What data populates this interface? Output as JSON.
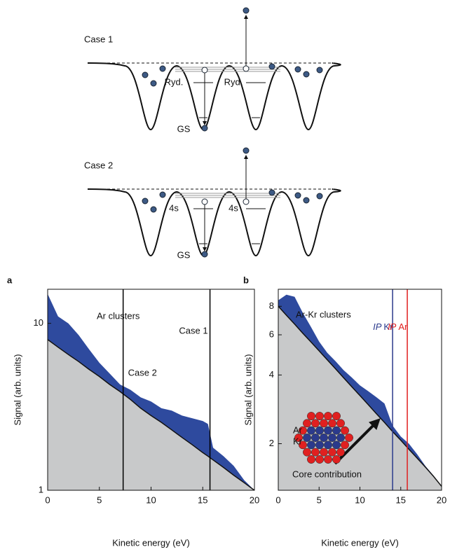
{
  "diagram": {
    "cases": [
      {
        "title": "Case 1",
        "labels": [
          "Ryd.",
          "Ryd.",
          "GS"
        ]
      },
      {
        "title": "Case 2",
        "labels": [
          "4s",
          "4s",
          "GS"
        ]
      }
    ]
  },
  "chart_data": [
    {
      "type": "area",
      "panel": "a",
      "title": "Ar clusters",
      "xlabel": "Kinetic energy (eV)",
      "ylabel": "Signal (arb. units)",
      "log_y": true,
      "x": [
        0,
        1,
        2,
        3,
        4,
        5,
        6,
        7,
        8,
        9,
        10,
        11,
        12,
        13,
        14,
        15,
        15.5,
        16,
        17,
        18,
        19,
        20
      ],
      "series": [
        {
          "color": "#2e4a9e",
          "values": [
            15,
            11,
            10,
            8.5,
            7,
            5.8,
            5,
            4.3,
            4,
            3.6,
            3.4,
            3.1,
            3.0,
            2.8,
            2.7,
            2.6,
            2.5,
            1.8,
            1.6,
            1.4,
            1.15,
            1.0
          ]
        },
        {
          "color": "#c8c9ca",
          "values": [
            8,
            7.2,
            6.5,
            5.9,
            5.3,
            4.8,
            4.3,
            3.9,
            3.5,
            3.1,
            2.8,
            2.55,
            2.3,
            2.07,
            1.87,
            1.68,
            1.6,
            1.52,
            1.37,
            1.23,
            1.11,
            1.0
          ]
        }
      ],
      "xlim": [
        0,
        20
      ],
      "xticks": [
        0,
        5,
        10,
        15,
        20
      ],
      "ylim": [
        1,
        16
      ],
      "yticks": [
        1,
        10
      ],
      "vlines": [
        {
          "x": 7.3,
          "label": "Case 2",
          "color": "#000000"
        },
        {
          "x": 15.7,
          "label": "Case 1",
          "color": "#000000"
        }
      ]
    },
    {
      "type": "area",
      "panel": "b",
      "title": "Ar-Kr clusters",
      "xlabel": "Kinetic energy (eV)",
      "ylabel": "Signal (arb. units)",
      "log_y": true,
      "x": [
        0,
        1,
        2,
        3,
        4,
        5,
        6,
        7,
        8,
        9,
        10,
        11,
        12,
        13,
        14,
        15,
        16,
        17,
        18,
        19,
        20
      ],
      "series": [
        {
          "color": "#2e4a9e",
          "values": [
            8.5,
            9,
            8.8,
            7.5,
            6.5,
            5.6,
            5.0,
            4.6,
            4.2,
            3.9,
            3.6,
            3.4,
            3.2,
            3.0,
            2.4,
            2.15,
            2.0,
            1.8,
            1.6,
            1.45,
            1.3
          ]
        },
        {
          "color": "#c8c9ca",
          "values": [
            8,
            7.31,
            6.68,
            6.1,
            5.58,
            5.1,
            4.66,
            4.26,
            3.89,
            3.55,
            3.25,
            2.97,
            2.71,
            2.48,
            2.26,
            2.07,
            1.89,
            1.73,
            1.58,
            1.44,
            1.3
          ]
        }
      ],
      "xlim": [
        0,
        20
      ],
      "xticks": [
        0,
        5,
        10,
        15,
        20
      ],
      "ylim": [
        1.25,
        9.5
      ],
      "yticks": [
        2,
        4,
        6,
        8
      ],
      "vlines": [
        {
          "x": 14,
          "prefix": "IP",
          "label": "Kr",
          "color": "#2b3a8c"
        },
        {
          "x": 15.8,
          "prefix": "IP",
          "label": "Ar",
          "color": "#e02020"
        }
      ],
      "annotation": "Core contribution",
      "species": [
        {
          "label": "Ar",
          "color": "#e02020"
        },
        {
          "label": "Kr",
          "color": "#2b3a8c"
        }
      ]
    }
  ]
}
